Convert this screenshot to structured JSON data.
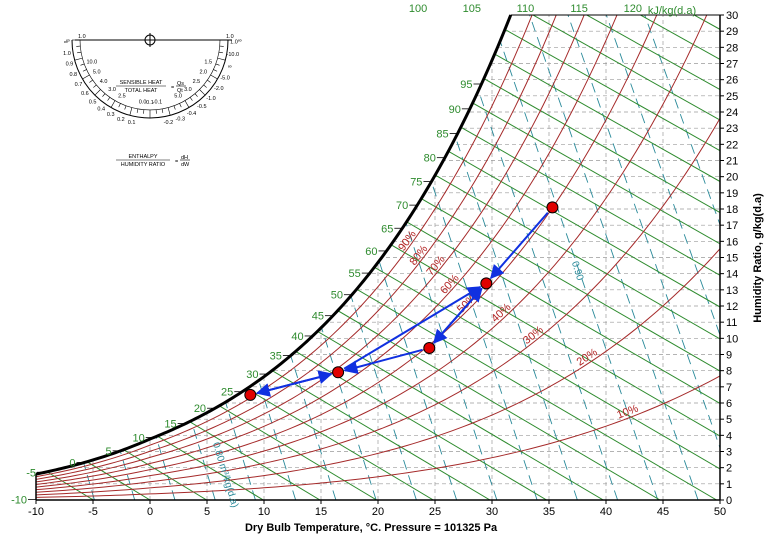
{
  "chart_data": {
    "type": "psychrometric",
    "xlabel": "Dry Bulb Temperature, °C. Pressure = 101325 Pa",
    "ylabel": "Humidity Ratio, g/kg(d.a)",
    "enthalpy_unit": "kJ/kg(d.a)",
    "xlim": [
      -10,
      50
    ],
    "ylim": [
      0,
      30
    ],
    "x_ticks": [
      -10,
      -5,
      0,
      5,
      10,
      15,
      20,
      25,
      30,
      35,
      40,
      45,
      50
    ],
    "y_ticks": [
      0,
      1,
      2,
      3,
      4,
      5,
      6,
      7,
      8,
      9,
      10,
      11,
      12,
      13,
      14,
      15,
      16,
      17,
      18,
      19,
      20,
      21,
      22,
      23,
      24,
      25,
      26,
      27,
      28,
      29,
      30
    ],
    "enthalpy_ticks_saturation": [
      -10,
      -5,
      0,
      5,
      10,
      15,
      20,
      25,
      30,
      35,
      40,
      45,
      50,
      55,
      60,
      65,
      70,
      75,
      80,
      85,
      90,
      95
    ],
    "enthalpy_ticks_top": [
      100,
      105,
      110,
      115,
      120
    ],
    "rh_curves": [
      {
        "rh": 10,
        "label": "10%"
      },
      {
        "rh": 20,
        "label": "20%"
      },
      {
        "rh": 30,
        "label": "30%"
      },
      {
        "rh": 40,
        "label": "40%"
      },
      {
        "rh": 50,
        "label": "50%"
      },
      {
        "rh": 60,
        "label": "60%"
      },
      {
        "rh": 70,
        "label": "70%"
      },
      {
        "rh": 80,
        "label": "80%"
      },
      {
        "rh": 90,
        "label": "90%"
      }
    ],
    "volume_labels": [
      {
        "label": "0.80 m³/kg(d.a)",
        "t": 5.5,
        "w": 3.5
      },
      {
        "label": "0.90",
        "t": 37.0,
        "w": 14.7
      }
    ],
    "state_points": [
      {
        "t": 35.3,
        "w": 18.1
      },
      {
        "t": 29.5,
        "w": 13.4
      },
      {
        "t": 24.5,
        "w": 9.4
      },
      {
        "t": 16.5,
        "w": 7.9
      },
      {
        "t": 8.8,
        "w": 6.5
      }
    ],
    "process_arrows": [
      {
        "from": [
          35.3,
          18.1
        ],
        "to": [
          29.5,
          13.4
        ]
      },
      {
        "from": [
          29.5,
          13.4
        ],
        "to": [
          24.5,
          9.4
        ]
      },
      {
        "from": [
          24.5,
          9.4
        ],
        "to": [
          16.5,
          7.9
        ]
      },
      {
        "from": [
          16.5,
          7.9
        ],
        "to": [
          8.8,
          6.5
        ]
      },
      {
        "from": [
          8.8,
          6.5
        ],
        "to": [
          16.5,
          7.9
        ]
      },
      {
        "from": [
          16.5,
          7.9
        ],
        "to": [
          29.5,
          13.4
        ]
      },
      {
        "from": [
          24.5,
          9.4
        ],
        "to": [
          29.5,
          13.4
        ]
      }
    ],
    "grid": true,
    "colors": {
      "saturation": "#000000",
      "rh": "#a52a2a",
      "enthalpy": "#2e8b2e",
      "volume": "#2a8a9a",
      "grid": "#9a9a9a",
      "points": "#e00000",
      "arrows": "#1030e0"
    }
  },
  "protractor": {
    "left_ticks": [
      "∞",
      "1.0",
      "0.9",
      "0.8",
      "0.7",
      "0.6",
      "0.5",
      "0.4",
      "0.3",
      "0.2",
      "0.1"
    ],
    "right_ticks": [
      "1.0",
      "-10.0",
      "∞",
      "-5.0",
      "-2.0",
      "-1.0",
      "-0.5",
      "-0.4",
      "-0.3",
      "-0.2"
    ],
    "inner_left": [
      "10.0",
      "5.0",
      "4.0",
      "3.0",
      "2.5"
    ],
    "inner_right": [
      "1.5",
      "2.0",
      "2.5",
      "3.0",
      "5.0"
    ],
    "bottom_ticks": [
      "0.0",
      "0.1",
      "-0.1"
    ],
    "top_left_label": "∞",
    "top_right_label": "∞",
    "top_center_1": "1.0",
    "top_center_2": "1.0",
    "sensible_num": "SENSIBLE HEAT",
    "sensible_den": "TOTAL HEAT",
    "sensible_eq": "=",
    "sensible_sym_num": "Qs",
    "sensible_sym_den": "Qt",
    "enthalpy_num": "ENTHALPY",
    "enthalpy_den": "HUMIDITY RATIO",
    "enthalpy_eq": "=",
    "enthalpy_sym_num": "dH",
    "enthalpy_sym_den": "dW"
  }
}
